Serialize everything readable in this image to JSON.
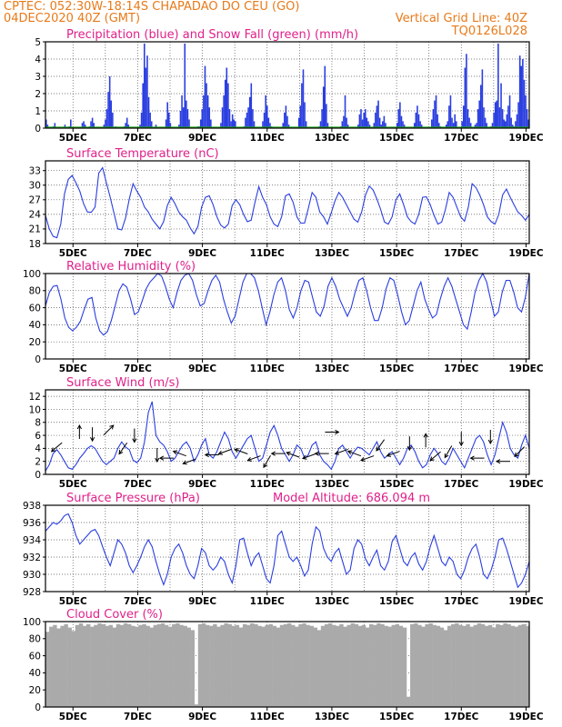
{
  "header": {
    "line1": "CPTEC:   052:30W-18:14S   CHAPADAO DO CEU (GO)",
    "line2": "04DEC2020 40Z (GMT)",
    "grid_note": "Vertical Grid Line: 40Z",
    "code": "TQ0126L028"
  },
  "colors": {
    "header_text": "#e87a1a",
    "panel_title": "#e0208a",
    "line": "#2a3ee0",
    "snow": "#1fa01f",
    "cloud": "#aaaaaa",
    "grid": "#555555"
  },
  "chart_data": [
    {
      "type": "bar",
      "name": "precipitation",
      "title": "Precipitation (blue) and Snow Fall (green) (mm/h)",
      "ylim": [
        0,
        5
      ],
      "yticks": [
        0,
        1,
        2,
        3,
        4,
        5
      ],
      "xticks": [
        "5DEC",
        "7DEC",
        "9DEC",
        "11DEC",
        "13DEC",
        "15DEC",
        "17DEC",
        "19DEC"
      ],
      "x_start_day": 4.15,
      "x_end_day": 19.1,
      "values": [
        0.5,
        0.2,
        0,
        0,
        0,
        0.1,
        0.3,
        0,
        0,
        0,
        0,
        0,
        0,
        0.2,
        0,
        0,
        0.1,
        0.5,
        0,
        0,
        0,
        0,
        0,
        0,
        0,
        0.3,
        0.4,
        0.2,
        0,
        0,
        0.1,
        0.4,
        0.6,
        0.3,
        0,
        0,
        0,
        0,
        0,
        0,
        0.2,
        0.5,
        1.1,
        2.1,
        3.0,
        1.6,
        0.9,
        0,
        0.1,
        0,
        0,
        0,
        0,
        0,
        0.1,
        0.3,
        0.6,
        0.2,
        0,
        0,
        0,
        0,
        0,
        0,
        0,
        0.2,
        0.9,
        2.6,
        4.9,
        3.5,
        4.2,
        1.8,
        0.9,
        0.4,
        0,
        0,
        0.2,
        0,
        0,
        0,
        0,
        0,
        0,
        0.5,
        1.5,
        0.9,
        0.3,
        0,
        0,
        0,
        0,
        0,
        0.2,
        1.0,
        1.9,
        1.2,
        4.9,
        1.6,
        1.1,
        0.5,
        0,
        0,
        0,
        0,
        0,
        0.1,
        0.1,
        0.5,
        1.1,
        1.9,
        3.6,
        2.6,
        1.9,
        1.2,
        0.5,
        0,
        0,
        0,
        0,
        0,
        0,
        0.3,
        1.2,
        1.9,
        2.8,
        3.5,
        2.6,
        1.1,
        0.4,
        0.8,
        0.5,
        0.4,
        0,
        0,
        0,
        0,
        0,
        0.1,
        0.6,
        0.9,
        1.2,
        1.8,
        2.6,
        1.1,
        0.4,
        0,
        0,
        0,
        0,
        0,
        0.4,
        0.9,
        1.9,
        1.3,
        0.6,
        0.3,
        0.1,
        0,
        0,
        0,
        0,
        0,
        0,
        0,
        0.3,
        0.9,
        1.3,
        0.7,
        0.2,
        0,
        0,
        0,
        0,
        0,
        0,
        0.6,
        1.3,
        2.6,
        3.4,
        1.5,
        0.4,
        0,
        0,
        0,
        0,
        0,
        0,
        0,
        0,
        0.1,
        0.4,
        1.1,
        2.4,
        3.6,
        1.4,
        0.3,
        0,
        0,
        0,
        0,
        0,
        0,
        0,
        0,
        0.1,
        0.4,
        0.7,
        1.9,
        0.6,
        0.2,
        0,
        0,
        0,
        0,
        0,
        0,
        0.2,
        0.8,
        1.1,
        0.5,
        0.9,
        1.1,
        0.6,
        0.4,
        0.2,
        0,
        0,
        0.3,
        0.9,
        1.3,
        1.6,
        0.6,
        0.2,
        0.4,
        0.7,
        0.3,
        0,
        0,
        0,
        0,
        0,
        0,
        0,
        0.3,
        1.1,
        1.5,
        0.7,
        0.4,
        0.2,
        0,
        0,
        0,
        0,
        0,
        0,
        0.3,
        0.9,
        1.3,
        0.8,
        0.4,
        0.2,
        0,
        0,
        0,
        0,
        0,
        0,
        0.5,
        1.1,
        1.6,
        1.9,
        0.8,
        0.3,
        0.1,
        0,
        0,
        0,
        0.2,
        0.4,
        1.3,
        1.9,
        0.6,
        0.3,
        0.8,
        0.4,
        0,
        0,
        0,
        0.4,
        1.3,
        3.5,
        4.3,
        1.1,
        0.6,
        0.3,
        0,
        0,
        0.2,
        0.3,
        1.1,
        1.6,
        2.5,
        3.4,
        1.2,
        0.6,
        0.3,
        0,
        0,
        0.1,
        0.3,
        0.9,
        1.5,
        1.6,
        4.9,
        1.2,
        2.6,
        1.1,
        0.5,
        0.4,
        0.8,
        1.3,
        1.9,
        0.6,
        0.2,
        0.1,
        0.4,
        0.8,
        1.5,
        4.2,
        3.6,
        4.0,
        2.8,
        1.9,
        1.1,
        0.5
      ],
      "snow": 0
    },
    {
      "type": "line",
      "name": "temperature",
      "title": "Surface Temperature (nC)",
      "ylim": [
        18,
        35
      ],
      "yticks": [
        18,
        21,
        24,
        27,
        30,
        33
      ],
      "xticks": [
        "5DEC",
        "7DEC",
        "9DEC",
        "11DEC",
        "13DEC",
        "15DEC",
        "17DEC",
        "19DEC"
      ],
      "x_start_day": 4.15,
      "x_end_day": 19.1,
      "values": [
        23.8,
        21.0,
        19.5,
        19.2,
        22.0,
        28.2,
        31.2,
        32.0,
        30.5,
        28.8,
        26.2,
        24.5,
        24.4,
        25.5,
        32.5,
        33.6,
        30.5,
        27.5,
        24.2,
        21.0,
        20.8,
        23.2,
        27.2,
        30.3,
        28.8,
        27.5,
        25.5,
        24.5,
        23.0,
        22.0,
        21.0,
        22.5,
        25.8,
        27.5,
        26.2,
        24.5,
        23.5,
        22.8,
        21.2,
        20.0,
        21.5,
        25.5,
        27.5,
        27.8,
        26.0,
        23.5,
        21.8,
        21.2,
        22.0,
        25.8,
        27.0,
        26.0,
        24.0,
        22.5,
        22.8,
        26.5,
        29.7,
        27.5,
        26.0,
        23.5,
        22.0,
        21.5,
        23.5,
        27.8,
        28.2,
        26.5,
        23.5,
        22.2,
        22.2,
        25.2,
        28.5,
        27.5,
        24.5,
        23.5,
        22.0,
        24.3,
        26.8,
        28.5,
        27.5,
        26.0,
        24.5,
        23.0,
        22.4,
        24.5,
        28.0,
        29.8,
        29.0,
        27.2,
        25.0,
        22.4,
        22.0,
        23.5,
        27.0,
        28.2,
        26.0,
        23.5,
        22.5,
        22.0,
        24.0,
        27.5,
        27.6,
        26.0,
        23.8,
        22.0,
        22.4,
        25.0,
        28.5,
        27.5,
        25.5,
        23.5,
        22.6,
        25.5,
        30.3,
        29.5,
        28.0,
        26.0,
        23.5,
        22.5,
        22.0,
        24.0,
        28.0,
        29.2,
        27.5,
        26.0,
        24.5,
        23.8,
        22.8,
        24.0
      ],
      "snow": null
    },
    {
      "type": "line",
      "name": "humidity",
      "title": "Relative Humidity (%)",
      "ylim": [
        0,
        100
      ],
      "yticks": [
        0,
        20,
        40,
        60,
        80,
        100
      ],
      "xticks": [
        "5DEC",
        "7DEC",
        "9DEC",
        "11DEC",
        "13DEC",
        "15DEC",
        "17DEC",
        "19DEC"
      ],
      "x_start_day": 4.15,
      "x_end_day": 19.1,
      "values": [
        62,
        78,
        85,
        86,
        70,
        48,
        37,
        33,
        37,
        44,
        58,
        70,
        72,
        48,
        33,
        28,
        32,
        45,
        62,
        80,
        88,
        84,
        70,
        52,
        55,
        68,
        82,
        90,
        95,
        100,
        97,
        85,
        70,
        60,
        78,
        92,
        98,
        100,
        92,
        75,
        62,
        65,
        80,
        92,
        98,
        90,
        70,
        55,
        42,
        50,
        70,
        90,
        100,
        100,
        95,
        80,
        60,
        40,
        55,
        75,
        90,
        95,
        80,
        58,
        48,
        60,
        80,
        92,
        90,
        72,
        55,
        50,
        62,
        85,
        95,
        85,
        70,
        60,
        50,
        60,
        78,
        92,
        95,
        80,
        60,
        45,
        45,
        60,
        82,
        95,
        92,
        75,
        55,
        40,
        45,
        62,
        80,
        90,
        70,
        58,
        48,
        52,
        70,
        85,
        95,
        85,
        70,
        55,
        40,
        35,
        55,
        78,
        92,
        100,
        90,
        70,
        50,
        55,
        78,
        92,
        92,
        78,
        60,
        55,
        72,
        100
      ],
      "snow": null
    },
    {
      "type": "line",
      "name": "wind",
      "title": "Surface Wind (m/s)",
      "ylim": [
        0,
        13
      ],
      "yticks": [
        0,
        2,
        4,
        6,
        8,
        10,
        12
      ],
      "xticks": [
        "5DEC",
        "7DEC",
        "9DEC",
        "11DEC",
        "13DEC",
        "15DEC",
        "17DEC",
        "19DEC"
      ],
      "x_start_day": 4.15,
      "x_end_day": 19.1,
      "values": [
        0.5,
        1.5,
        3.2,
        3.8,
        3.0,
        2.0,
        1.0,
        0.8,
        1.5,
        2.5,
        3.2,
        4.0,
        4.4,
        4.0,
        3.0,
        2.0,
        1.5,
        2.0,
        2.5,
        4.0,
        5.0,
        4.2,
        3.8,
        2.2,
        1.8,
        2.5,
        5.0,
        9.5,
        11.2,
        6.0,
        5.0,
        4.5,
        3.5,
        2.0,
        2.5,
        3.5,
        4.5,
        5.0,
        4.0,
        2.0,
        3.0,
        4.5,
        5.5,
        3.0,
        2.5,
        3.5,
        5.0,
        6.5,
        5.5,
        3.5,
        2.5,
        3.5,
        4.5,
        5.5,
        6.0,
        4.0,
        2.0,
        2.5,
        4.5,
        6.5,
        7.5,
        6.0,
        4.0,
        3.0,
        2.0,
        3.0,
        4.5,
        4.0,
        2.5,
        3.0,
        4.5,
        5.0,
        3.0,
        2.0,
        1.5,
        0.8,
        2.0,
        4.0,
        4.5,
        3.5,
        2.5,
        3.5,
        4.2,
        4.0,
        3.5,
        3.0,
        4.0,
        5.0,
        3.5,
        2.5,
        3.0,
        3.5,
        2.5,
        1.5,
        2.5,
        4.0,
        4.5,
        3.5,
        2.0,
        1.0,
        1.5,
        3.0,
        4.0,
        3.2,
        2.0,
        1.5,
        2.5,
        4.0,
        3.0,
        2.0,
        1.0,
        2.5,
        4.0,
        5.5,
        6.0,
        5.0,
        3.0,
        1.5,
        3.0,
        5.5,
        8.0,
        6.5,
        4.0,
        3.0,
        2.5,
        4.5,
        6.0,
        4.0
      ],
      "snow": null
    },
    {
      "type": "line",
      "name": "pressure",
      "title": "Surface Pressure (hPa)",
      "subtitle": "Model Altitude: 686.094 m",
      "ylim": [
        928,
        938
      ],
      "yticks": [
        928,
        930,
        932,
        934,
        936,
        938
      ],
      "xticks": [
        "5DEC",
        "7DEC",
        "9DEC",
        "11DEC",
        "13DEC",
        "15DEC",
        "17DEC",
        "19DEC"
      ],
      "x_start_day": 4.15,
      "x_end_day": 19.1,
      "values": [
        935.0,
        935.5,
        936.0,
        935.8,
        936.2,
        936.8,
        937.0,
        936.0,
        934.5,
        933.5,
        934.0,
        934.5,
        935.0,
        935.2,
        934.5,
        933.2,
        932.0,
        931.0,
        932.5,
        934.0,
        933.5,
        932.5,
        931.0,
        930.2,
        931.0,
        932.0,
        933.2,
        934.0,
        933.2,
        931.5,
        930.0,
        928.8,
        930.0,
        932.0,
        933.0,
        933.5,
        932.5,
        931.0,
        930.0,
        929.5,
        931.0,
        933.0,
        932.5,
        931.0,
        930.5,
        931.0,
        932.0,
        931.5,
        930.0,
        929.0,
        931.0,
        934.0,
        934.2,
        932.5,
        931.0,
        932.0,
        932.5,
        931.0,
        929.5,
        929.0,
        931.0,
        934.5,
        935.0,
        933.5,
        932.0,
        931.5,
        932.0,
        931.0,
        929.8,
        930.5,
        933.5,
        935.5,
        935.0,
        933.0,
        932.0,
        931.5,
        932.5,
        933.0,
        931.5,
        930.0,
        930.5,
        933.0,
        934.0,
        933.5,
        931.8,
        931.0,
        932.0,
        932.8,
        931.0,
        930.5,
        931.5,
        933.8,
        934.5,
        933.0,
        931.5,
        931.0,
        932.0,
        932.5,
        931.2,
        930.5,
        931.5,
        933.2,
        934.5,
        933.0,
        931.5,
        931.0,
        932.0,
        931.5,
        930.0,
        929.5,
        930.5,
        932.0,
        933.0,
        933.5,
        932.0,
        930.0,
        929.5,
        930.5,
        932.0,
        934.0,
        934.2,
        933.0,
        931.5,
        930.0,
        928.5,
        929.0,
        930.0,
        931.5
      ],
      "snow": null
    },
    {
      "type": "area",
      "name": "cloud",
      "title": "Cloud Cover (%)",
      "ylim": [
        0,
        100
      ],
      "yticks": [
        0,
        20,
        40,
        60,
        80,
        100
      ],
      "xticks": [
        "5DEC",
        "7DEC",
        "9DEC",
        "11DEC",
        "13DEC",
        "15DEC",
        "17DEC",
        "19DEC"
      ],
      "x_start_day": 4.15,
      "x_end_day": 19.1,
      "values": [
        88,
        94,
        96,
        92,
        95,
        97,
        93,
        89,
        96,
        98,
        95,
        97,
        94,
        96,
        98,
        97,
        95,
        96,
        93,
        97,
        96,
        98,
        97,
        95,
        94,
        96,
        97,
        95,
        93,
        96,
        97,
        98,
        96,
        94,
        97,
        98,
        96,
        95,
        93,
        90,
        3,
        97,
        98,
        96,
        95,
        97,
        94,
        96,
        98,
        97,
        95,
        96,
        93,
        97,
        96,
        98,
        97,
        95,
        94,
        96,
        97,
        95,
        93,
        96,
        97,
        98,
        96,
        94,
        97,
        98,
        96,
        95,
        93,
        90,
        95,
        97,
        98,
        96,
        95,
        97,
        94,
        96,
        98,
        97,
        95,
        96,
        93,
        97,
        96,
        98,
        97,
        95,
        94,
        96,
        97,
        95,
        93,
        12,
        97,
        98,
        96,
        94,
        97,
        98,
        96,
        95,
        93,
        90,
        95,
        97,
        98,
        96,
        95,
        97,
        94,
        96,
        98,
        97,
        95,
        96,
        93,
        97,
        96,
        98,
        97,
        95,
        94,
        96,
        97,
        95
      ],
      "snow": null
    }
  ],
  "wind_arrows": [
    {
      "day": 4.5,
      "speed": 4.2,
      "dir": 220
    },
    {
      "day": 5.2,
      "speed": 6.5,
      "dir": 90
    },
    {
      "day": 5.6,
      "speed": 6.2,
      "dir": 270
    },
    {
      "day": 6.1,
      "speed": 6.8,
      "dir": 45
    },
    {
      "day": 6.55,
      "speed": 4.0,
      "dir": 235
    },
    {
      "day": 6.9,
      "speed": 6.0,
      "dir": 270
    },
    {
      "day": 7.6,
      "speed": 3.0,
      "dir": 270
    },
    {
      "day": 7.9,
      "speed": 2.5,
      "dir": 180
    },
    {
      "day": 8.3,
      "speed": 3.2,
      "dir": 160
    },
    {
      "day": 8.6,
      "speed": 2.0,
      "dir": 200
    },
    {
      "day": 9.3,
      "speed": 3.0,
      "dir": 180
    },
    {
      "day": 9.7,
      "speed": 3.5,
      "dir": 200
    },
    {
      "day": 10.2,
      "speed": 3.5,
      "dir": 160
    },
    {
      "day": 10.6,
      "speed": 2.5,
      "dir": 200
    },
    {
      "day": 11.0,
      "speed": 2.0,
      "dir": 240
    },
    {
      "day": 11.35,
      "speed": 3.2,
      "dir": 180
    },
    {
      "day": 11.8,
      "speed": 3.0,
      "dir": 160
    },
    {
      "day": 12.3,
      "speed": 2.8,
      "dir": 200
    },
    {
      "day": 12.7,
      "speed": 3.2,
      "dir": 180
    },
    {
      "day": 13.0,
      "speed": 6.5,
      "dir": 0
    },
    {
      "day": 13.3,
      "speed": 3.5,
      "dir": 200
    },
    {
      "day": 13.7,
      "speed": 3.2,
      "dir": 160
    },
    {
      "day": 14.1,
      "speed": 2.5,
      "dir": 200
    },
    {
      "day": 14.5,
      "speed": 4.5,
      "dir": 235
    },
    {
      "day": 14.9,
      "speed": 3.2,
      "dir": 200
    },
    {
      "day": 15.4,
      "speed": 4.8,
      "dir": 270
    },
    {
      "day": 15.9,
      "speed": 5.2,
      "dir": 90
    },
    {
      "day": 16.2,
      "speed": 2.8,
      "dir": 220
    },
    {
      "day": 16.6,
      "speed": 3.5,
      "dir": 240
    },
    {
      "day": 17.0,
      "speed": 5.5,
      "dir": 270
    },
    {
      "day": 17.5,
      "speed": 2.5,
      "dir": 180
    },
    {
      "day": 17.9,
      "speed": 5.8,
      "dir": 270
    },
    {
      "day": 18.3,
      "speed": 2.0,
      "dir": 180
    },
    {
      "day": 18.8,
      "speed": 3.5,
      "dir": 225
    }
  ]
}
